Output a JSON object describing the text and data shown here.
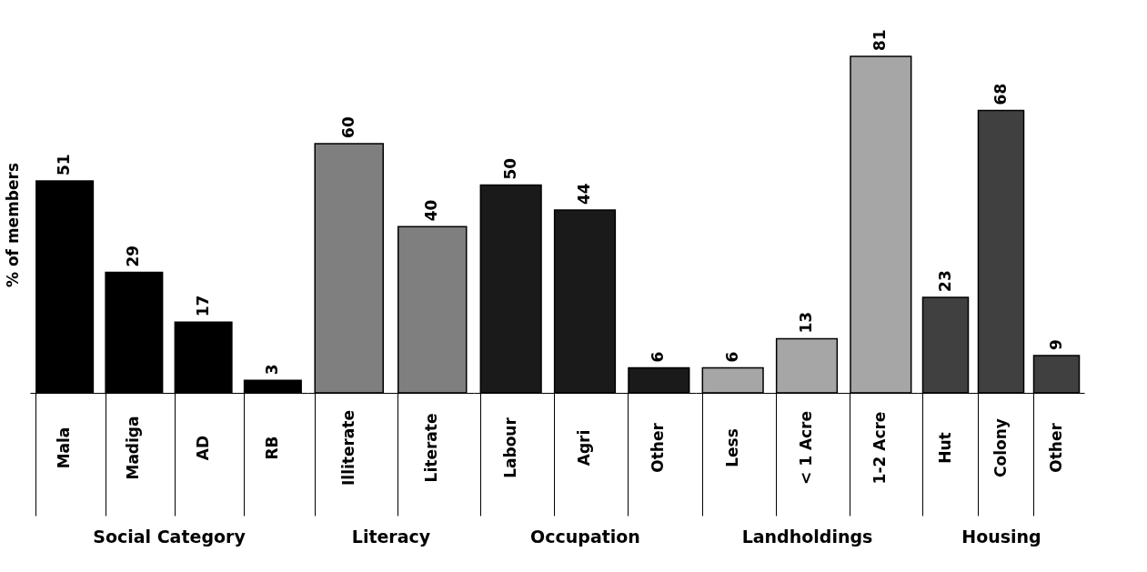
{
  "chart_data": [
    {
      "type": "bar",
      "xlabel": "Social Category",
      "ylabel": "% of members",
      "categories": [
        "Mala",
        "Madiga",
        "AD",
        "RB",
        null
      ],
      "values": [
        51,
        29,
        17,
        3,
        null
      ],
      "color": "#000000",
      "data_labels": true,
      "tick_labels": "x"
    },
    {
      "type": "bar",
      "xlabel": "Literacy",
      "categories": [
        "Illiterate",
        "Literate",
        null
      ],
      "values": [
        60,
        40,
        null
      ],
      "color": "#7f7f7f",
      "data_labels": true,
      "tick_labels": "x"
    },
    {
      "type": "bar",
      "xlabel": "Occupation",
      "categories": [
        "Labour",
        "Agri",
        "Other",
        null
      ],
      "values": [
        50,
        44,
        6,
        null
      ],
      "color": "#1a1a1a",
      "data_labels": true,
      "tick_labels": "x"
    },
    {
      "type": "bar",
      "xlabel": "Landholdings",
      "categories": [
        "Less",
        "< 1 Acre",
        "1-2 Acre",
        null
      ],
      "values": [
        6,
        13,
        81,
        null
      ],
      "color": "#a6a6a6",
      "data_labels": true,
      "tick_labels": "x"
    },
    {
      "type": "bar",
      "xlabel": "Housing",
      "categories": [
        "Hut",
        "Colony",
        "Other"
      ],
      "values": [
        23,
        68,
        9
      ],
      "color": "#404040",
      "data_labels": true,
      "tick_labels": "x"
    }
  ]
}
